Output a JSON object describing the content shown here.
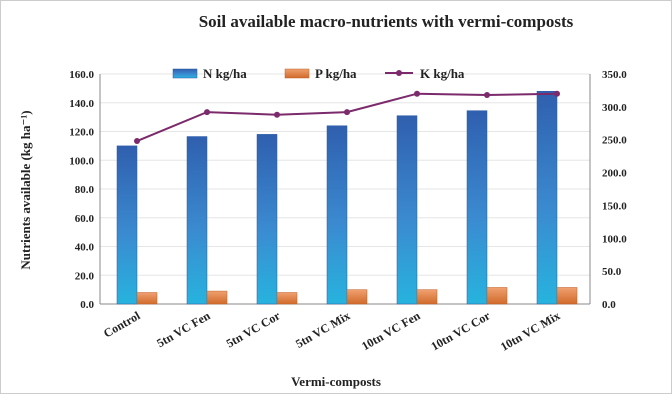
{
  "chart_data": {
    "type": "bar",
    "title": "Soil available macro-nutrients with vermi-composts",
    "xlabel": "Vermi-composts",
    "ylabel": "Nutrients available (kg ha⁻¹)",
    "categories": [
      "Control",
      "5tn VC Fen",
      "5tn VC Cor",
      "5tn VC Mix",
      "10tn VC Fen",
      "10tn VC Cor",
      "10tn VC Mix"
    ],
    "left_axis": {
      "ylim": [
        0,
        160
      ],
      "ticks": [
        "0.0",
        "20.0",
        "40.0",
        "60.0",
        "80.0",
        "100.0",
        "120.0",
        "140.0",
        "160.0"
      ]
    },
    "right_axis": {
      "ylim": [
        0,
        350
      ],
      "ticks": [
        "0.0",
        "50.0",
        "100.0",
        "150.0",
        "200.0",
        "250.0",
        "300.0",
        "350.0"
      ]
    },
    "series": [
      {
        "name": "N kg/ha",
        "type": "bar",
        "axis": "left",
        "color": "#3f76c9",
        "values": [
          110,
          116.5,
          118,
          124,
          131,
          134.5,
          148
        ]
      },
      {
        "name": "P kg/ha",
        "type": "bar",
        "axis": "left",
        "color": "#e07d3c",
        "values": [
          8,
          9,
          8,
          10,
          10,
          11.5,
          11.5
        ]
      },
      {
        "name": "K kg/ha",
        "type": "line",
        "axis": "right",
        "color": "#7b2a6b",
        "values": [
          248,
          292,
          288,
          292,
          320,
          318,
          320
        ]
      }
    ],
    "grid": true,
    "legend_position": "top"
  }
}
